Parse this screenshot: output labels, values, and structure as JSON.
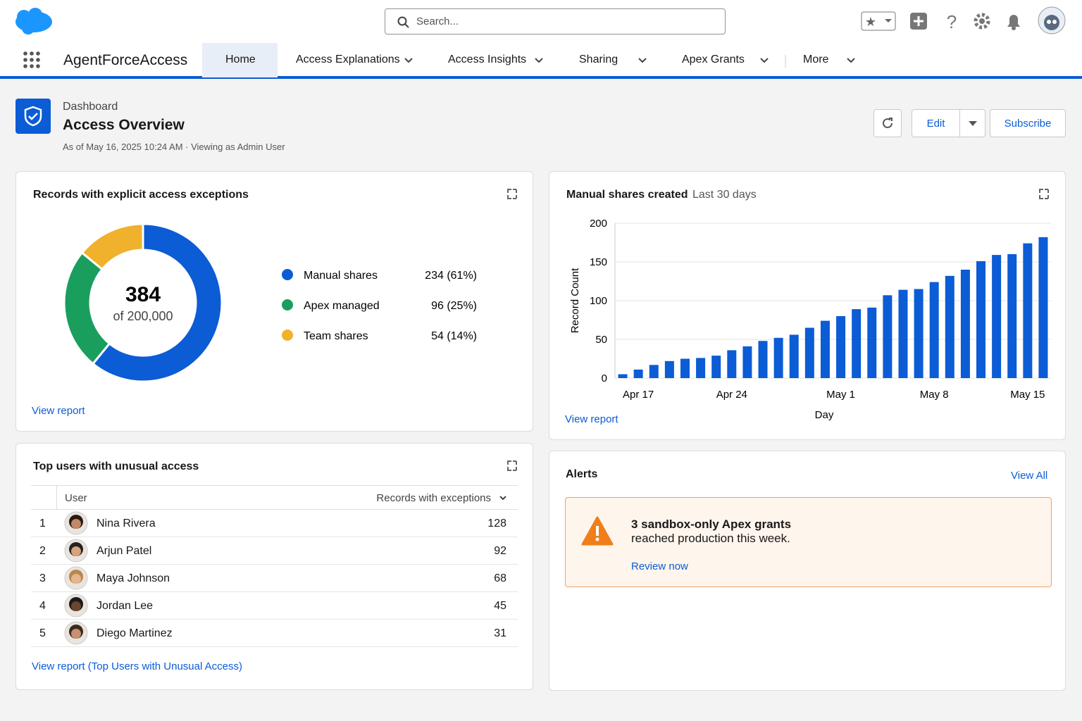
{
  "header": {
    "app_name": "AgentForceAccess",
    "search_placeholder": "Search..."
  },
  "nav": [
    "Home",
    "Access Explanations",
    "Access Insights",
    "Sharing",
    "Apex Grants",
    "More"
  ],
  "page_header": {
    "kicker": "Dashboard",
    "title": "Access Overview",
    "subtitle": "As of May 16, 2025 10:24 AM · Viewing as Admin User",
    "buttons": [
      "Edit",
      "Subscribe"
    ]
  },
  "donut_card": {
    "title": "Records with explicit access exceptions",
    "link": "View report",
    "chart": {
      "type": "donut",
      "center_value": "384",
      "center_label": "of 200,000",
      "categories": [
        "Manual shares",
        "Apex managed",
        "Team shares"
      ],
      "values": [
        234,
        96,
        54
      ],
      "value_labels": [
        "234 (61%)",
        "96 (25%)",
        "54 (14%)"
      ],
      "colors": [
        "#0b5cd5",
        "#1a9e5e",
        "#f0b12d"
      ]
    }
  },
  "bar_card": {
    "title": "Manual shares created",
    "subtitle": "Last 30 days",
    "link": "View report",
    "chart": {
      "type": "bar",
      "y_label": "Record Count",
      "x_label": "Day",
      "categories": [
        null,
        "Apr 17",
        null,
        null,
        null,
        null,
        null,
        "Apr 24",
        null,
        null,
        null,
        null,
        null,
        null,
        "May 1",
        null,
        null,
        null,
        null,
        null,
        "May 8",
        null,
        null,
        null,
        null,
        null,
        "May 15",
        null
      ],
      "values": [
        5,
        11,
        17,
        22,
        25,
        26,
        29,
        36,
        41,
        48,
        52,
        56,
        65,
        74,
        80,
        89,
        91,
        107,
        114,
        115,
        124,
        132,
        140,
        151,
        159,
        160,
        174,
        182
      ],
      "color": "#0b5cd5",
      "ylim": [
        0,
        200
      ],
      "yticks": [
        0,
        50,
        100,
        150,
        200
      ],
      "grid": true
    }
  },
  "table_card": {
    "title": "Top users with unusual access",
    "columns": [
      "User",
      "Records with exceptions"
    ],
    "rows": [
      [
        "1",
        "Nina Rivera",
        "128"
      ],
      [
        "2",
        "Arjun Patel",
        "92"
      ],
      [
        "3",
        "Maya Johnson",
        "68"
      ],
      [
        "4",
        "Jordan Lee",
        "45"
      ],
      [
        "5",
        "Diego Martinez",
        "31"
      ]
    ],
    "link": "View report (Top Users with Unusual Access)"
  },
  "alerts_card": {
    "title": "Alerts",
    "view_all": "View All",
    "alert": {
      "lines": [
        "3 sandbox-only Apex grants",
        "reached production this week."
      ],
      "link": "Review now"
    }
  }
}
